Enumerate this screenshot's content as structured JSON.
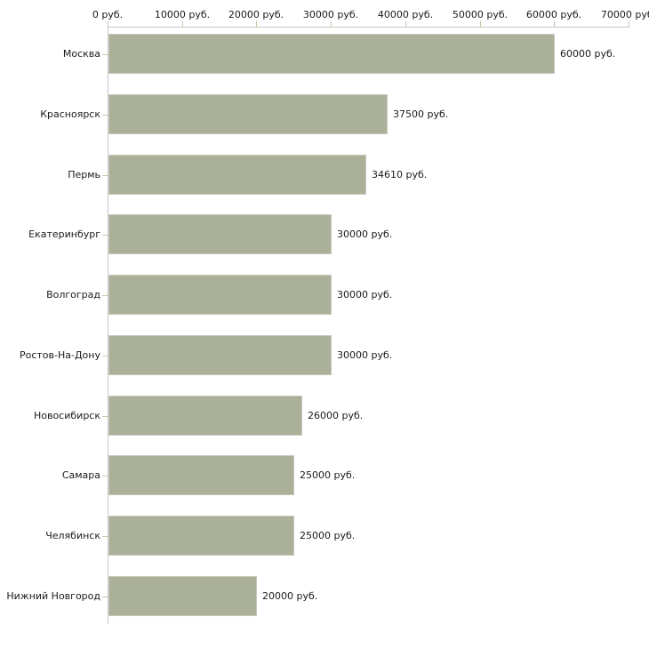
{
  "chart_data": {
    "type": "bar",
    "orientation": "horizontal",
    "unit": "руб.",
    "categories": [
      "Москва",
      "Красноярск",
      "Пермь",
      "Екатеринбург",
      "Волгоград",
      "Ростов-На-Дону",
      "Новосибирск",
      "Самара",
      "Челябинск",
      "Нижний Новгород"
    ],
    "values": [
      60000,
      37500,
      34610,
      30000,
      30000,
      30000,
      26000,
      25000,
      25000,
      20000
    ],
    "value_labels": [
      "60000 руб.",
      "37500 руб.",
      "34610 руб.",
      "30000 руб.",
      "30000 руб.",
      "30000 руб.",
      "26000 руб.",
      "25000 руб.",
      "25000 руб.",
      "20000 руб."
    ],
    "xlim": [
      0,
      70000
    ],
    "x_ticks": [
      0,
      10000,
      20000,
      30000,
      40000,
      50000,
      60000,
      70000
    ],
    "x_tick_labels": [
      "0 руб.",
      "10000 руб.",
      "20000 руб.",
      "30000 руб.",
      "40000 руб.",
      "50000 руб.",
      "60000 руб.",
      "70000 руб."
    ],
    "axis_position": "top",
    "grid": false,
    "legend": false,
    "colors": {
      "bar_fill": "#abb198",
      "bar_border": "#c6c8bc",
      "axis_line": "#c8c8c8",
      "tick_mark": "#c9c7a3",
      "text": "#1a1a1a",
      "background": "#ffffff"
    }
  }
}
